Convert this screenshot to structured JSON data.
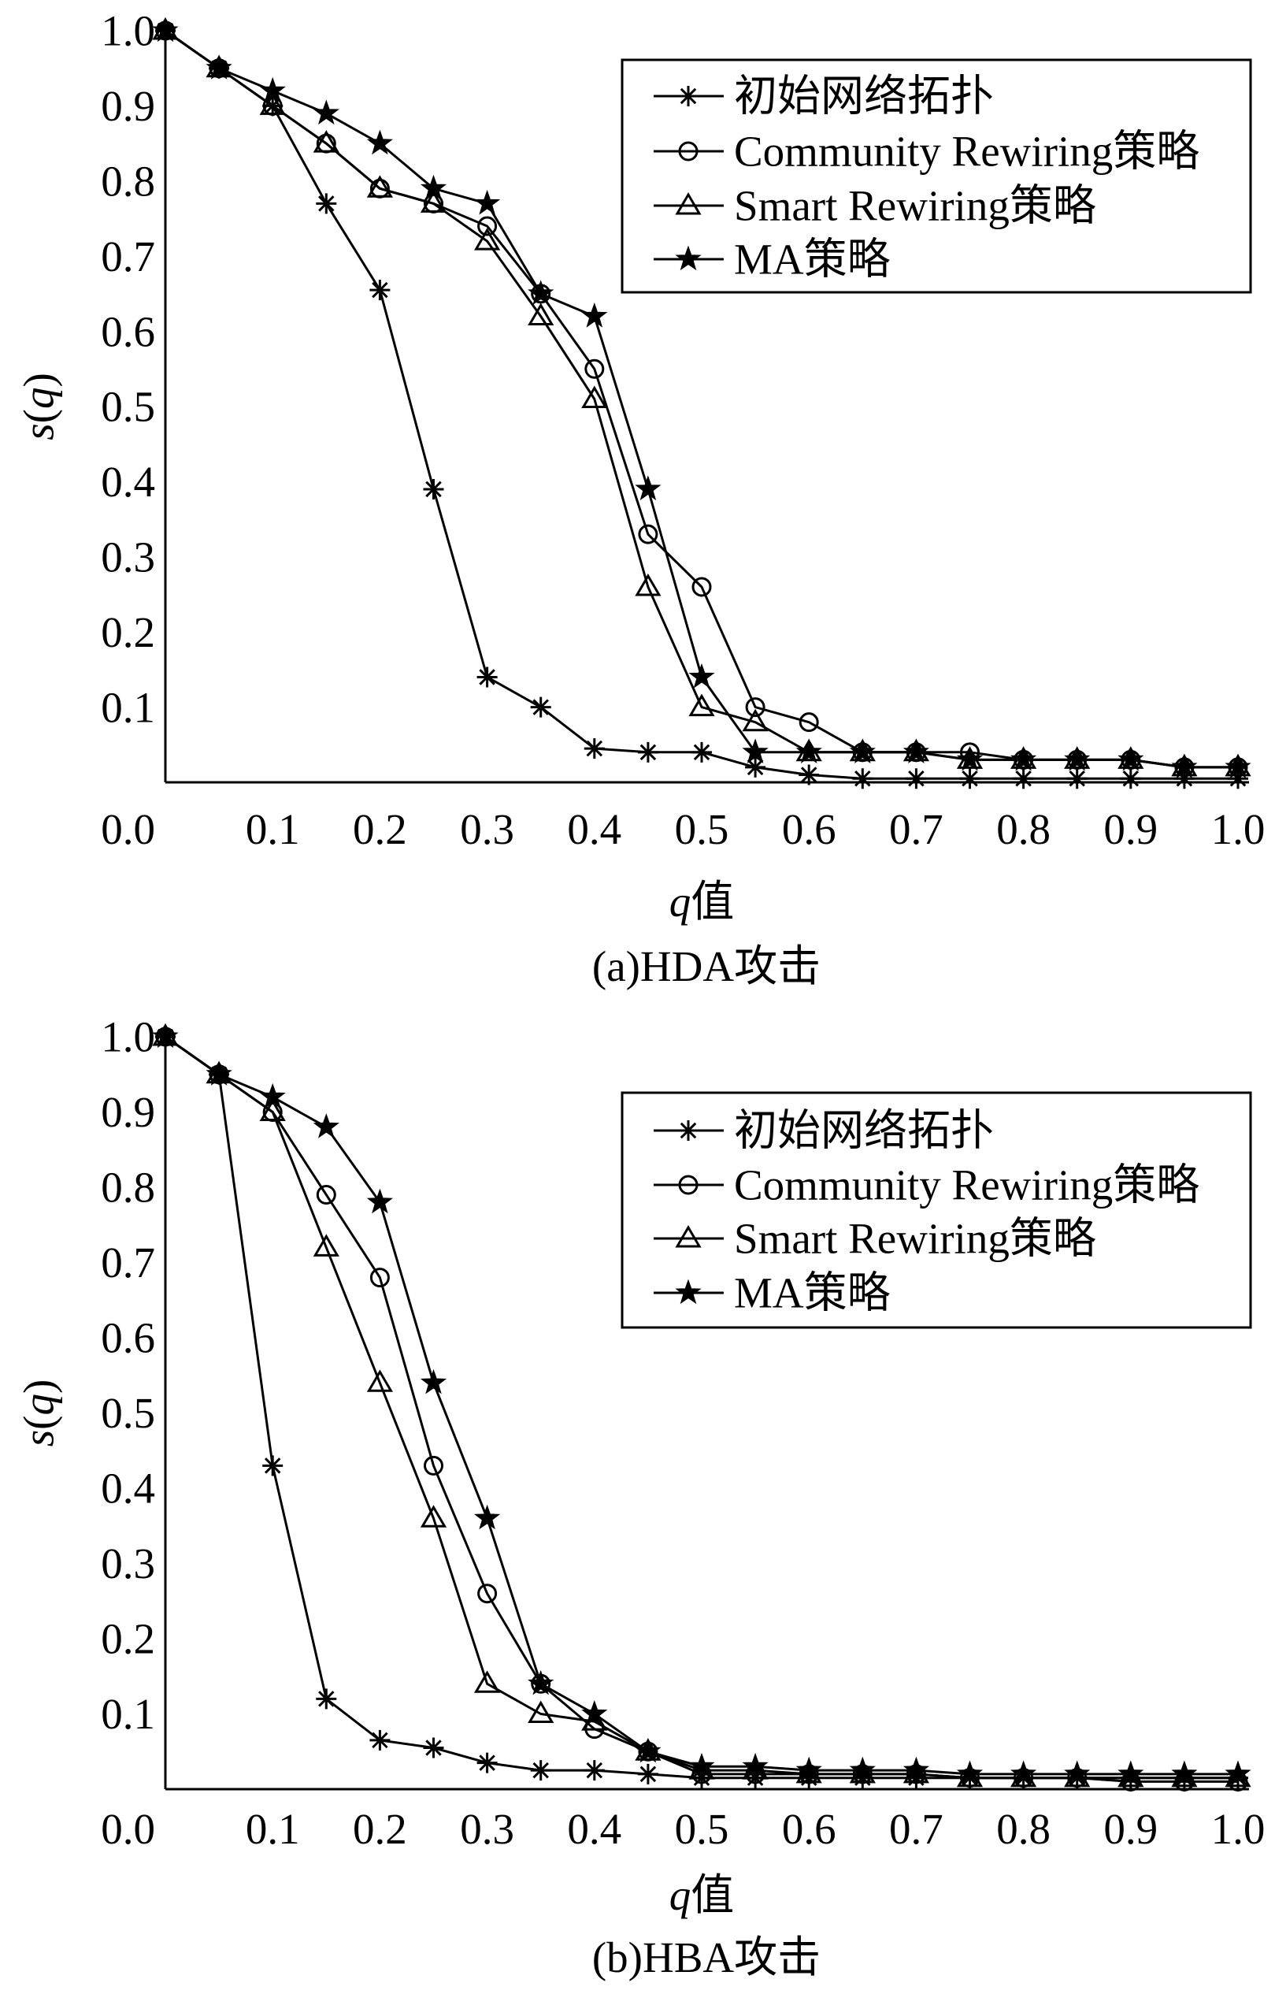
{
  "chart_data": [
    {
      "type": "line",
      "caption": "(a)HDA攻击",
      "xlabel": "q值",
      "ylabel": "s(q)",
      "xlim": [
        0,
        1.0
      ],
      "ylim": [
        0,
        1.0
      ],
      "xticks": [
        "0.0",
        "0.1",
        "0.2",
        "0.3",
        "0.4",
        "0.5",
        "0.6",
        "0.7",
        "0.8",
        "0.9",
        "1.0"
      ],
      "yticks": [
        "0.1",
        "0.2",
        "0.3",
        "0.4",
        "0.5",
        "0.6",
        "0.7",
        "0.8",
        "0.9",
        "1.0"
      ],
      "grid": false,
      "legend_position": "top-right",
      "line_color": "#000000",
      "x": [
        0,
        0.05,
        0.1,
        0.15,
        0.2,
        0.25,
        0.3,
        0.35,
        0.4,
        0.45,
        0.5,
        0.55,
        0.6,
        0.65,
        0.7,
        0.75,
        0.8,
        0.85,
        0.9,
        0.95,
        1.0
      ],
      "series": [
        {
          "name": "初始网络拓扑",
          "marker": "asterisk",
          "values": [
            1.0,
            0.95,
            0.9,
            0.77,
            0.655,
            0.39,
            0.14,
            0.1,
            0.045,
            0.04,
            0.04,
            0.02,
            0.01,
            0.005,
            0.005,
            0.005,
            0.005,
            0.005,
            0.005,
            0.005,
            0.005
          ]
        },
        {
          "name": "Community Rewiring策略",
          "marker": "circle",
          "values": [
            1.0,
            0.95,
            0.9,
            0.85,
            0.79,
            0.77,
            0.74,
            0.65,
            0.55,
            0.33,
            0.26,
            0.1,
            0.08,
            0.04,
            0.04,
            0.04,
            0.03,
            0.03,
            0.03,
            0.02,
            0.02
          ]
        },
        {
          "name": "Smart Rewiring策略",
          "marker": "triangle",
          "values": [
            1.0,
            0.95,
            0.9,
            0.85,
            0.79,
            0.77,
            0.72,
            0.62,
            0.51,
            0.26,
            0.1,
            0.08,
            0.04,
            0.04,
            0.04,
            0.03,
            0.03,
            0.03,
            0.03,
            0.02,
            0.02
          ]
        },
        {
          "name": "MA策略",
          "marker": "star",
          "values": [
            1.0,
            0.95,
            0.92,
            0.89,
            0.85,
            0.79,
            0.77,
            0.65,
            0.62,
            0.39,
            0.14,
            0.04,
            0.04,
            0.04,
            0.04,
            0.03,
            0.03,
            0.03,
            0.03,
            0.02,
            0.02
          ]
        }
      ]
    },
    {
      "type": "line",
      "caption": "(b)HBA攻击",
      "xlabel": "q值",
      "ylabel": "s(q)",
      "xlim": [
        0,
        1.0
      ],
      "ylim": [
        0,
        1.0
      ],
      "xticks": [
        "0.0",
        "0.1",
        "0.2",
        "0.3",
        "0.4",
        "0.5",
        "0.6",
        "0.7",
        "0.8",
        "0.9",
        "1.0"
      ],
      "yticks": [
        "0.1",
        "0.2",
        "0.3",
        "0.4",
        "0.5",
        "0.6",
        "0.7",
        "0.8",
        "0.9",
        "1.0"
      ],
      "grid": false,
      "legend_position": "top-right",
      "line_color": "#000000",
      "x": [
        0,
        0.05,
        0.1,
        0.15,
        0.2,
        0.25,
        0.3,
        0.35,
        0.4,
        0.45,
        0.5,
        0.55,
        0.6,
        0.65,
        0.7,
        0.75,
        0.8,
        0.85,
        0.9,
        0.95,
        1.0
      ],
      "series": [
        {
          "name": "初始网络拓扑",
          "marker": "asterisk",
          "values": [
            1.0,
            0.95,
            0.43,
            0.12,
            0.065,
            0.055,
            0.035,
            0.025,
            0.025,
            0.02,
            0.015,
            0.015,
            0.015,
            0.015,
            0.015,
            0.015,
            0.015,
            0.015,
            0.015,
            0.015,
            0.015
          ]
        },
        {
          "name": "Community Rewiring策略",
          "marker": "circle",
          "values": [
            1.0,
            0.95,
            0.9,
            0.79,
            0.68,
            0.43,
            0.26,
            0.14,
            0.08,
            0.05,
            0.02,
            0.02,
            0.02,
            0.02,
            0.02,
            0.015,
            0.015,
            0.015,
            0.01,
            0.01,
            0.01
          ]
        },
        {
          "name": "Smart Rewiring策略",
          "marker": "triangle",
          "values": [
            1.0,
            0.95,
            0.9,
            0.72,
            0.54,
            0.36,
            0.14,
            0.1,
            0.09,
            0.05,
            0.025,
            0.025,
            0.02,
            0.02,
            0.02,
            0.015,
            0.015,
            0.015,
            0.015,
            0.015,
            0.015
          ]
        },
        {
          "name": "MA策略",
          "marker": "star",
          "values": [
            1.0,
            0.95,
            0.92,
            0.88,
            0.78,
            0.54,
            0.36,
            0.14,
            0.1,
            0.05,
            0.03,
            0.03,
            0.025,
            0.025,
            0.025,
            0.02,
            0.02,
            0.02,
            0.02,
            0.02,
            0.02
          ]
        }
      ]
    }
  ]
}
